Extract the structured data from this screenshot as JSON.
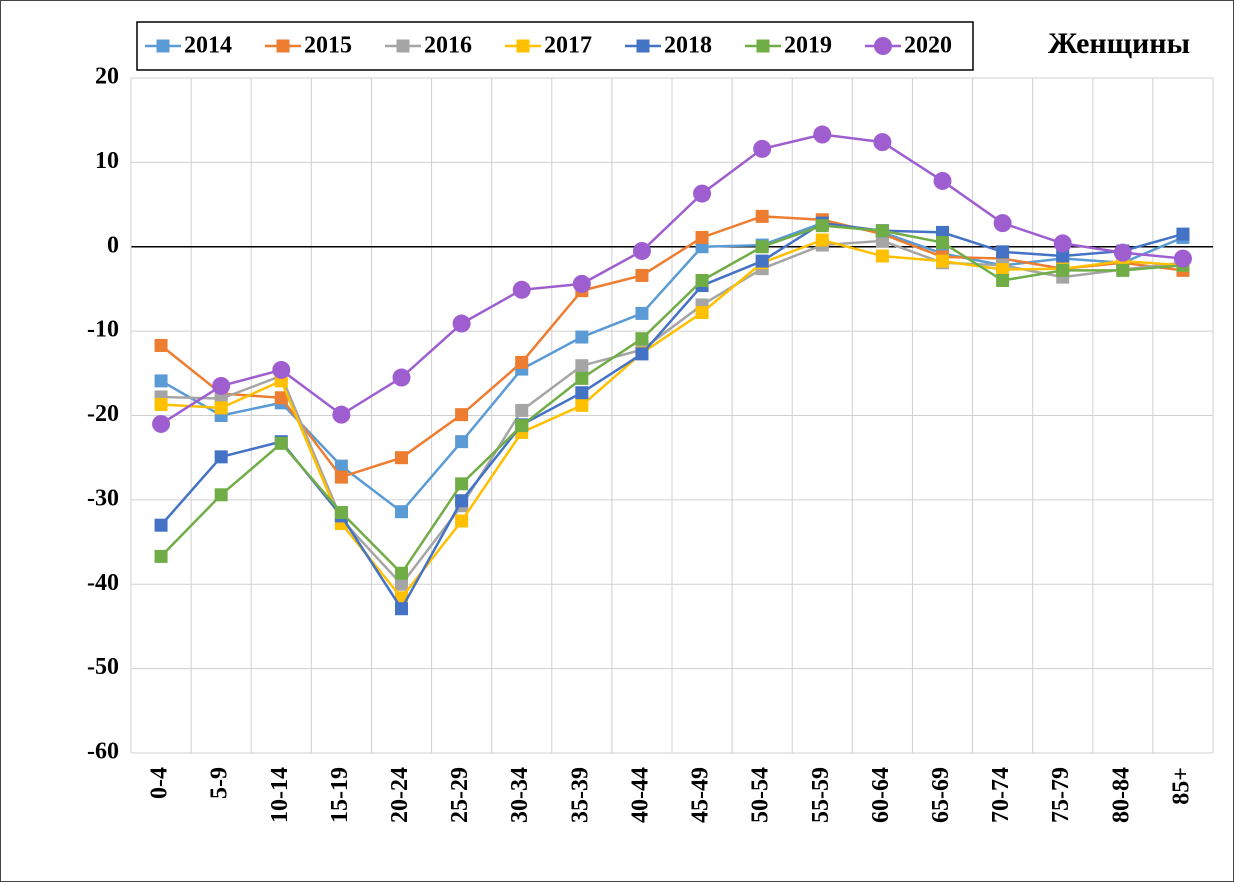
{
  "chart_data": {
    "type": "line",
    "title": "Женщины",
    "categories": [
      "0-4",
      "5-9",
      "10-14",
      "15-19",
      "20-24",
      "25-29",
      "30-34",
      "35-39",
      "40-44",
      "45-49",
      "50-54",
      "55-59",
      "60-64",
      "65-69",
      "70-74",
      "75-79",
      "80-84",
      "85+"
    ],
    "ylim": [
      -60,
      20
    ],
    "yticks": [
      -60,
      -50,
      -40,
      -30,
      -20,
      -10,
      0,
      10,
      20
    ],
    "grid": true,
    "series": [
      {
        "name": "2014",
        "color": "#5b9bd5",
        "marker": "square",
        "values": [
          -15.9,
          -20,
          -18.5,
          -26,
          -31.4,
          -23.1,
          -14.5,
          -10.7,
          -7.9,
          0,
          0.2,
          2.8,
          1.7,
          -0.8,
          -2.2,
          -1.4,
          -1.9,
          1.1
        ]
      },
      {
        "name": "2015",
        "color": "#ed7d31",
        "marker": "square",
        "values": [
          -11.7,
          -17.4,
          -17.9,
          -27.3,
          -25,
          -19.9,
          -13.7,
          -5.2,
          -3.4,
          1.1,
          3.6,
          3.2,
          1.5,
          -1.2,
          -1.4,
          -2.6,
          -1.9,
          -2.8
        ]
      },
      {
        "name": "2016",
        "color": "#a5a5a5",
        "marker": "square",
        "values": [
          -17.8,
          -18,
          -15.3,
          -32.3,
          -40,
          -30.7,
          -19.4,
          -14.1,
          -12.2,
          -6.9,
          -2.6,
          0.2,
          0.7,
          -1.9,
          -2.2,
          -3.6,
          -2.7,
          -1.9
        ]
      },
      {
        "name": "2017",
        "color": "#ffc000",
        "marker": "square",
        "values": [
          -18.7,
          -19.1,
          -15.9,
          -32.8,
          -41.6,
          -32.5,
          -22,
          -18.8,
          -12.6,
          -7.8,
          -1.9,
          0.8,
          -1.1,
          -1.7,
          -2.7,
          -2.6,
          -1.7,
          -2.2
        ]
      },
      {
        "name": "2018",
        "color": "#4472c4",
        "marker": "square",
        "values": [
          -33,
          -24.9,
          -23.1,
          -31.9,
          -42.9,
          -30.1,
          -21.1,
          -17.3,
          -12.7,
          -4.6,
          -1.7,
          2.8,
          1.9,
          1.7,
          -0.6,
          -1.1,
          -0.5,
          1.5
        ]
      },
      {
        "name": "2019",
        "color": "#70ad47",
        "marker": "square",
        "values": [
          -36.7,
          -29.4,
          -23.3,
          -31.5,
          -38.7,
          -28.1,
          -21.2,
          -15.6,
          -10.9,
          -4,
          0,
          2.5,
          1.9,
          0.5,
          -4,
          -2.8,
          -2.8,
          -2.2
        ]
      },
      {
        "name": "2020",
        "color": "#9e5ecf",
        "marker": "circle",
        "values": [
          -21,
          -16.5,
          -14.6,
          -19.9,
          -15.5,
          -9.1,
          -5.1,
          -4.4,
          -0.5,
          6.3,
          11.6,
          13.3,
          12.4,
          7.8,
          2.8,
          0.4,
          -0.7,
          -1.4
        ]
      }
    ]
  }
}
